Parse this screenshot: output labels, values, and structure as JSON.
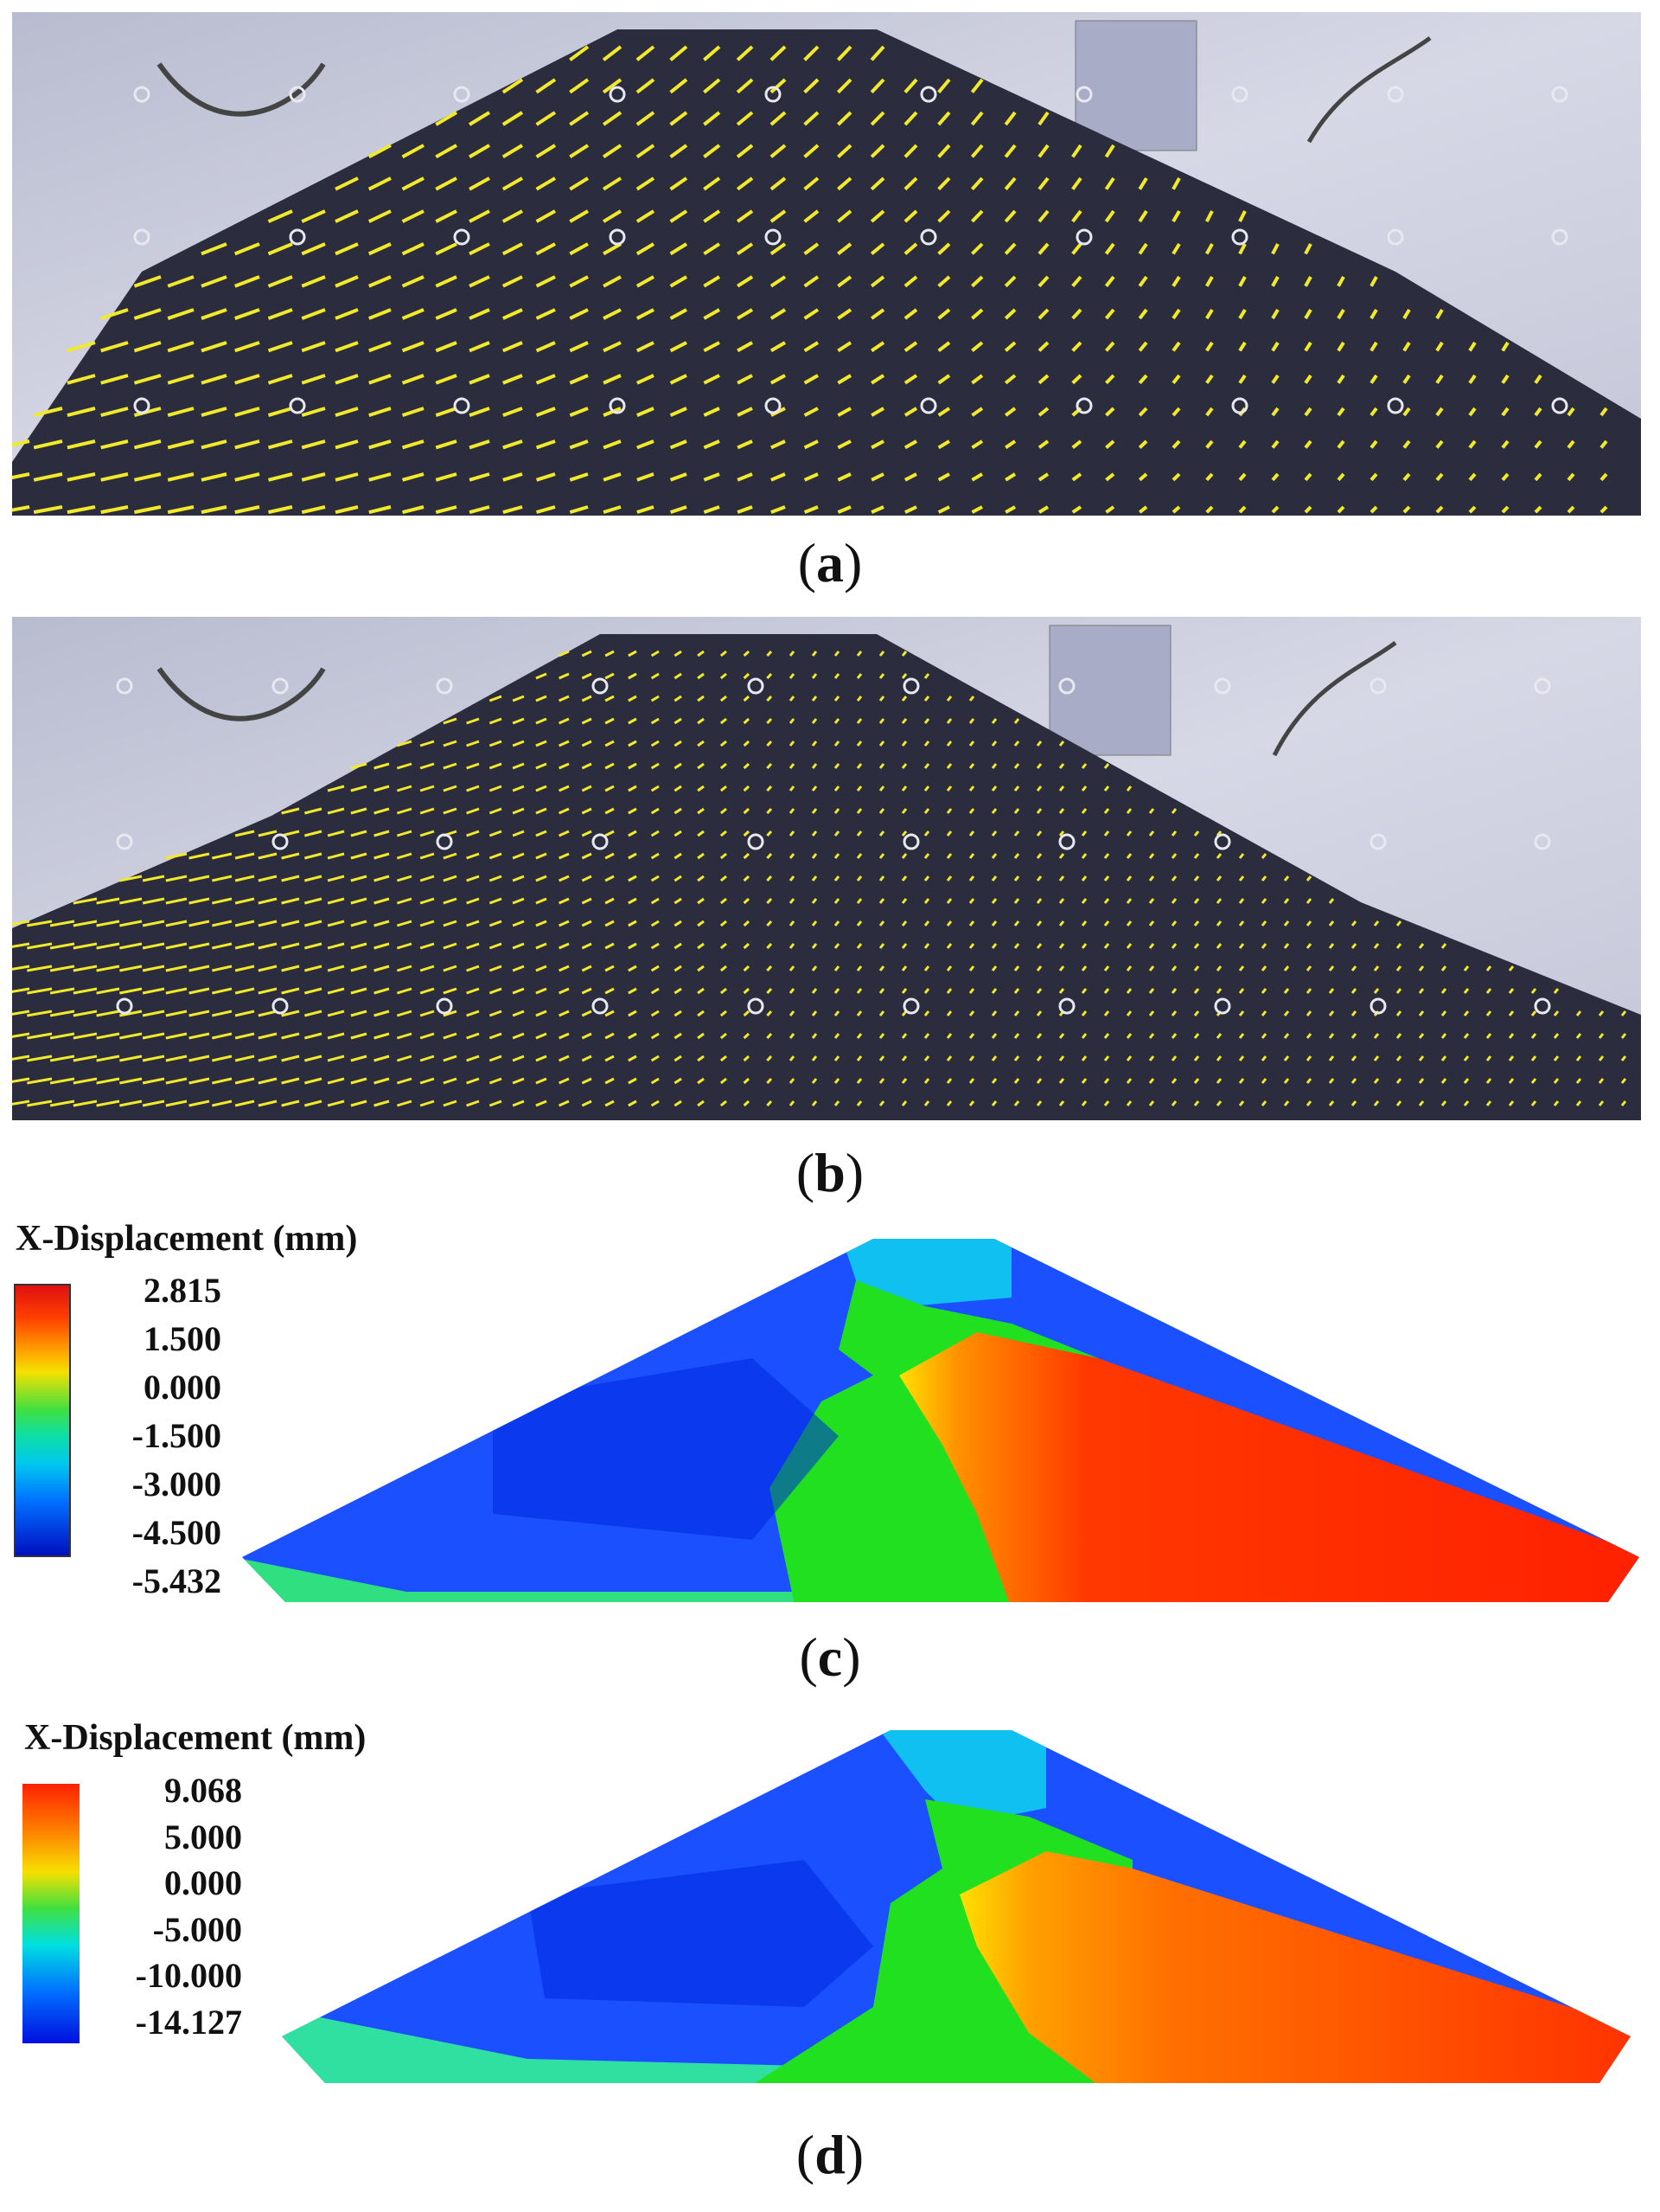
{
  "panels": {
    "a": {
      "caption_letter": "a"
    },
    "b": {
      "caption_letter": "b"
    },
    "c": {
      "caption_letter": "c",
      "legend_title": "X-Displacement (mm)",
      "legend_ticks": [
        "2.815",
        "1.500",
        "0.000",
        "-1.500",
        "-3.000",
        "-4.500",
        "-5.432"
      ]
    },
    "d": {
      "caption_letter": "d",
      "legend_title": "X-Displacement (mm)",
      "legend_ticks": [
        "9.068",
        "5.000",
        "0.000",
        "-5.000",
        "-10.000",
        "-14.127"
      ]
    }
  },
  "colors": {
    "photo_background": "#c9c9dc",
    "soil": "#2b2d3f",
    "vector": "#f2e92a",
    "contour_red": "#ff2a00",
    "contour_orange": "#ff8c00",
    "contour_yellow": "#f0f000",
    "contour_green": "#20e020",
    "contour_cyan": "#00d8f0",
    "contour_blue": "#1048ff",
    "contour_darkblue": "#0020e0"
  }
}
